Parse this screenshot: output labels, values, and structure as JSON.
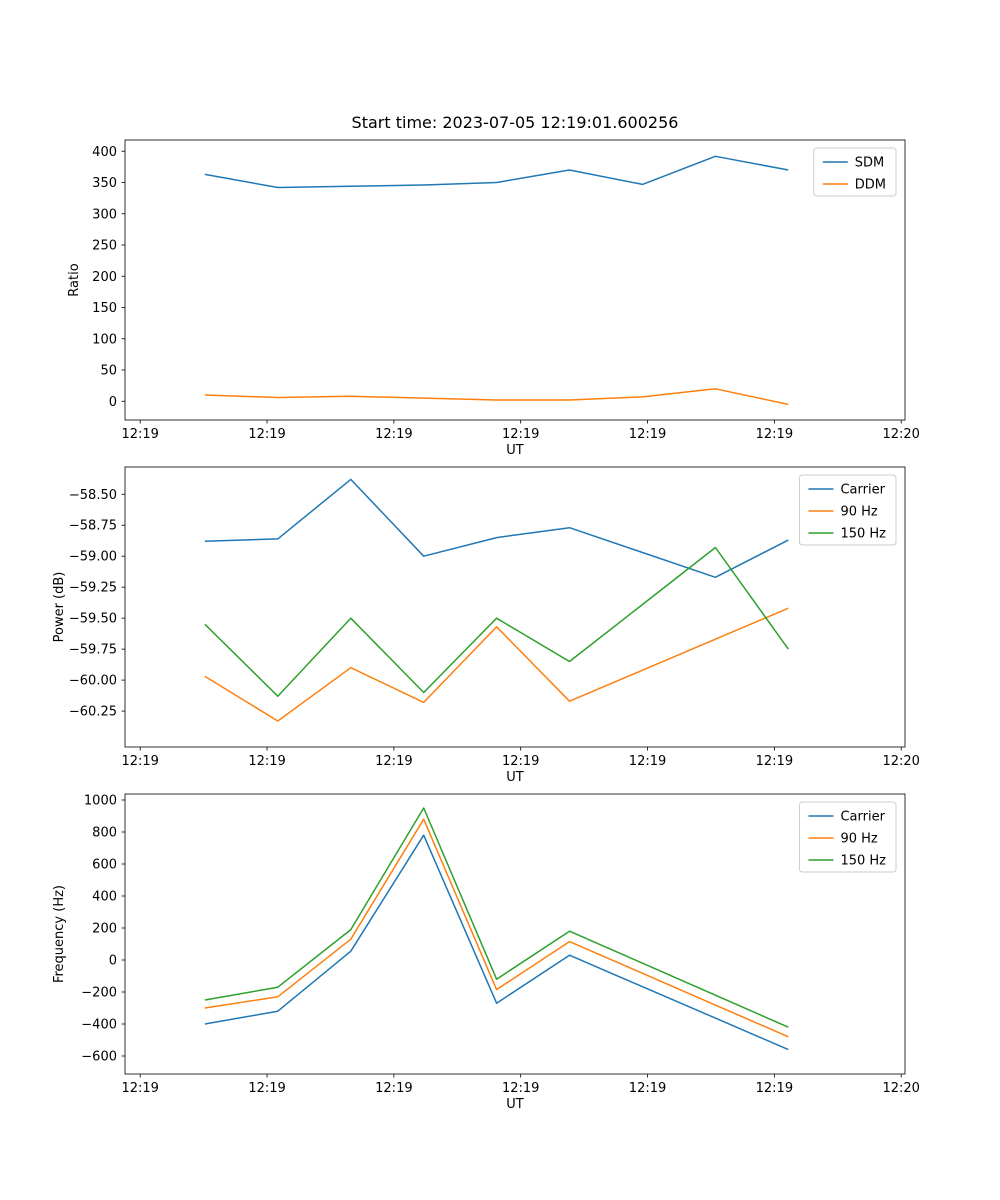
{
  "figure": {
    "title": "Start time: 2023-07-05 12:19:01.600256",
    "background_color": "#ffffff",
    "text_color": "#000000",
    "spine_color": "#000000",
    "legend_border_color": "#cccccc"
  },
  "chart_data": [
    {
      "type": "line",
      "name": "ratio-plot",
      "title": "Start time: 2023-07-05 12:19:01.600256",
      "xlabel": "UT",
      "ylabel": "Ratio",
      "legend_position": "upper right",
      "grid": false,
      "x_seconds_after_1219": [
        5.1,
        10.85,
        16.6,
        22.35,
        28.1,
        33.85,
        39.6,
        45.35,
        51.1
      ],
      "xlim_seconds": [
        -1.2,
        60.3
      ],
      "xticks_seconds": [
        0,
        10,
        20,
        30,
        40,
        50,
        60
      ],
      "xtick_labels": [
        "12:19",
        "12:19",
        "12:19",
        "12:19",
        "12:19",
        "12:19",
        "12:20"
      ],
      "ylim": [
        -30,
        418
      ],
      "yticks": [
        0,
        50,
        100,
        150,
        200,
        250,
        300,
        350,
        400
      ],
      "ytick_labels": [
        "0",
        "50",
        "100",
        "150",
        "200",
        "250",
        "300",
        "350",
        "400"
      ],
      "series": [
        {
          "name": "SDM",
          "color": "#1f77b4",
          "values": [
            363,
            342,
            344,
            346,
            350,
            370,
            347,
            392,
            370
          ]
        },
        {
          "name": "DDM",
          "color": "#ff7f0e",
          "values": [
            10,
            6,
            8,
            5,
            2,
            2,
            7,
            20,
            -5
          ]
        }
      ]
    },
    {
      "type": "line",
      "name": "power-plot",
      "title": "",
      "xlabel": "UT",
      "ylabel": "Power (dB)",
      "legend_position": "upper right",
      "grid": false,
      "x_seconds_after_1219": [
        5.1,
        10.85,
        16.6,
        22.35,
        28.1,
        33.85,
        39.6,
        45.35,
        51.1
      ],
      "xlim_seconds": [
        -1.2,
        60.3
      ],
      "xticks_seconds": [
        0,
        10,
        20,
        30,
        40,
        50,
        60
      ],
      "xtick_labels": [
        "12:19",
        "12:19",
        "12:19",
        "12:19",
        "12:19",
        "12:19",
        "12:20"
      ],
      "ylim": [
        -60.54,
        -58.28
      ],
      "yticks": [
        -60.25,
        -60.0,
        -59.75,
        -59.5,
        -59.25,
        -59.0,
        -58.75,
        -58.5
      ],
      "ytick_labels": [
        "−60.25",
        "−60.00",
        "−59.75",
        "−59.50",
        "−59.25",
        "−59.00",
        "−58.75",
        "−58.50"
      ],
      "series": [
        {
          "name": "Carrier",
          "color": "#1f77b4",
          "values": [
            -58.88,
            -58.86,
            -58.38,
            -59.0,
            -58.85,
            -58.77,
            -58.97,
            -59.17,
            -58.87
          ]
        },
        {
          "name": "90 Hz",
          "color": "#ff7f0e",
          "values": [
            -59.97,
            -60.33,
            -59.9,
            -60.18,
            -59.57,
            -60.17,
            -59.92,
            -59.67,
            -59.42
          ]
        },
        {
          "name": "150 Hz",
          "color": "#2ca02c",
          "values": [
            -59.55,
            -60.13,
            -59.5,
            -60.1,
            -59.5,
            -59.85,
            -59.39,
            -58.93,
            -59.75
          ]
        }
      ]
    },
    {
      "type": "line",
      "name": "frequency-plot",
      "title": "",
      "xlabel": "UT",
      "ylabel": "Frequency (Hz)",
      "legend_position": "upper right",
      "grid": false,
      "x_seconds_after_1219": [
        5.1,
        10.85,
        16.6,
        22.35,
        28.1,
        33.85,
        39.6,
        45.35,
        51.1
      ],
      "xlim_seconds": [
        -1.2,
        60.3
      ],
      "xticks_seconds": [
        0,
        10,
        20,
        30,
        40,
        50,
        60
      ],
      "xtick_labels": [
        "12:19",
        "12:19",
        "12:19",
        "12:19",
        "12:19",
        "12:19",
        "12:20"
      ],
      "ylim": [
        -712.5,
        1037.5
      ],
      "yticks": [
        -600,
        -400,
        -200,
        0,
        200,
        400,
        600,
        800,
        1000
      ],
      "ytick_labels": [
        "−600",
        "−400",
        "−200",
        "0",
        "200",
        "400",
        "600",
        "800",
        "1000"
      ],
      "series": [
        {
          "name": "Carrier",
          "color": "#1f77b4",
          "values": [
            -400,
            -320,
            55,
            780,
            -270,
            30,
            -167,
            -363,
            -560
          ]
        },
        {
          "name": "90 Hz",
          "color": "#ff7f0e",
          "values": [
            -300,
            -230,
            130,
            880,
            -185,
            115,
            -83,
            -282,
            -480
          ]
        },
        {
          "name": "150 Hz",
          "color": "#2ca02c",
          "values": [
            -250,
            -170,
            190,
            950,
            -120,
            180,
            -20,
            -220,
            -420
          ]
        }
      ]
    }
  ]
}
